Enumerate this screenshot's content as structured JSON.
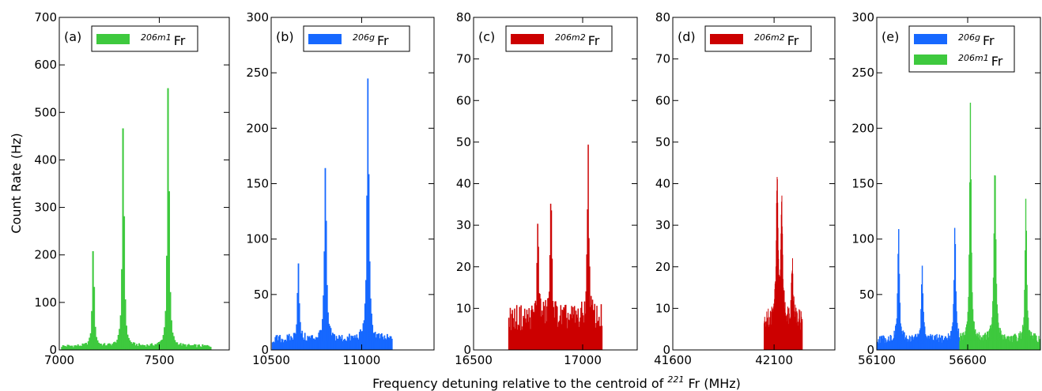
{
  "figure": {
    "xlabel_prefix": "Frequency detuning relative to the centroid of ",
    "xlabel_isotope_mass": "221",
    "xlabel_suffix": " Fr (MHz)",
    "ylabel": "Count Rate (Hz)"
  },
  "chart_data": [
    {
      "type": "bar",
      "panel": "(a)",
      "xlim": [
        7000,
        7850
      ],
      "ylim": [
        0,
        700
      ],
      "xticks": [
        7000,
        7500
      ],
      "yticks": [
        0,
        100,
        200,
        300,
        400,
        500,
        600,
        700
      ],
      "legend": [
        {
          "sup": "206m1",
          "base": "Fr",
          "color": "#3ec93e"
        }
      ],
      "series": [
        {
          "name": "206m1 Fr",
          "color": "#3ec93e",
          "range": [
            7010,
            7760
          ],
          "baseline": 8,
          "peaks": [
            [
              7170,
              220,
              5
            ],
            [
              7320,
              495,
              5
            ],
            [
              7545,
              583,
              5
            ]
          ]
        }
      ]
    },
    {
      "type": "bar",
      "panel": "(b)",
      "xlim": [
        10500,
        11400
      ],
      "ylim": [
        0,
        300
      ],
      "xticks": [
        10500,
        11000
      ],
      "yticks": [
        0,
        50,
        100,
        150,
        200,
        250,
        300
      ],
      "legend": [
        {
          "sup": "206g",
          "base": "Fr",
          "color": "#1668ff"
        }
      ],
      "series": [
        {
          "name": "206g Fr",
          "color": "#1668ff",
          "range": [
            10505,
            11170
          ],
          "baseline": 10,
          "peaks": [
            [
              10650,
              78,
              5
            ],
            [
              10800,
              161,
              6
            ],
            [
              11035,
              244,
              6
            ]
          ]
        }
      ]
    },
    {
      "type": "bar",
      "panel": "(c)",
      "xlim": [
        16500,
        17250
      ],
      "ylim": [
        0,
        80
      ],
      "xticks": [
        16500,
        17000
      ],
      "yticks": [
        0,
        10,
        20,
        30,
        40,
        50,
        60,
        70,
        80
      ],
      "legend": [
        {
          "sup": "206m2",
          "base": "Fr",
          "color": "#cc0000"
        }
      ],
      "series": [
        {
          "name": "206m2 Fr",
          "color": "#cc0000",
          "range": [
            16660,
            17090
          ],
          "baseline": 8,
          "peaks": [
            [
              16795,
              28,
              4
            ],
            [
              16855,
              31,
              5
            ],
            [
              17025,
              46,
              4
            ]
          ]
        }
      ]
    },
    {
      "type": "bar",
      "panel": "(d)",
      "xlim": [
        41600,
        42400
      ],
      "ylim": [
        0,
        80
      ],
      "xticks": [
        41600,
        42100
      ],
      "yticks": [
        0,
        10,
        20,
        30,
        40,
        50,
        60,
        70,
        80
      ],
      "legend": [
        {
          "sup": "206m2",
          "base": "Fr",
          "color": "#cc0000"
        }
      ],
      "series": [
        {
          "name": "206m2 Fr",
          "color": "#cc0000",
          "range": [
            42050,
            42240
          ],
          "baseline": 7,
          "peaks": [
            [
              42115,
              37,
              5
            ],
            [
              42138,
              31,
              5
            ],
            [
              42190,
              18,
              5
            ]
          ]
        }
      ]
    },
    {
      "type": "bar",
      "panel": "(e)",
      "xlim": [
        56100,
        57000
      ],
      "ylim": [
        0,
        300
      ],
      "xticks": [
        56100,
        56600
      ],
      "yticks": [
        0,
        50,
        100,
        150,
        200,
        250,
        300
      ],
      "legend": [
        {
          "sup": "206g",
          "base": "Fr",
          "color": "#1668ff"
        },
        {
          "sup": "206m1",
          "base": "Fr",
          "color": "#3ec93e"
        }
      ],
      "series": [
        {
          "name": "206g Fr",
          "color": "#1668ff",
          "range": [
            56100,
            56555
          ],
          "baseline": 10,
          "peaks": [
            [
              56220,
              106,
              5
            ],
            [
              56350,
              74,
              5
            ],
            [
              56530,
              110,
              5
            ]
          ]
        },
        {
          "name": "206m1 Fr",
          "color": "#3ec93e",
          "range": [
            56555,
            57000
          ],
          "baseline": 10,
          "peaks": [
            [
              56615,
              218,
              5
            ],
            [
              56750,
              162,
              6
            ],
            [
              56920,
              132,
              5
            ]
          ]
        }
      ]
    }
  ]
}
